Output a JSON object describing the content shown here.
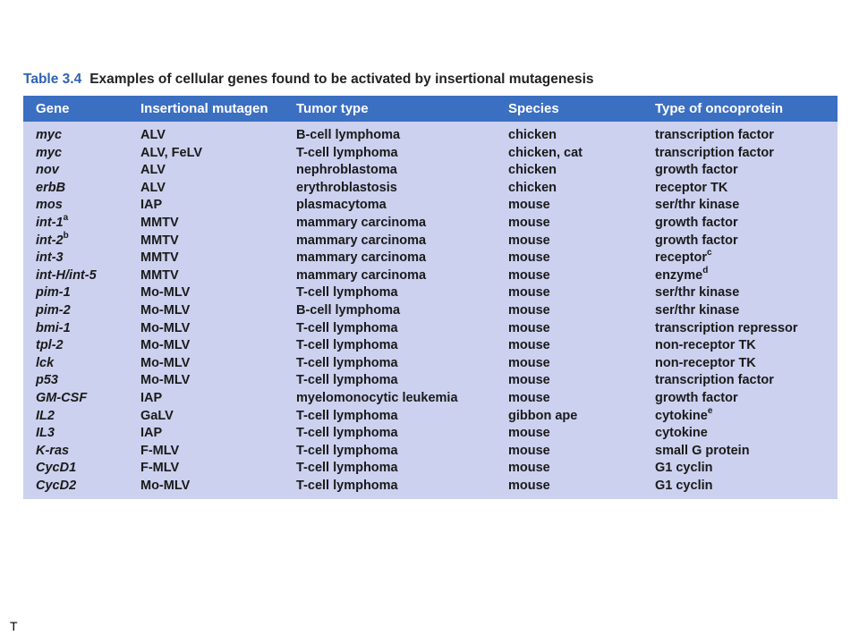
{
  "caption": {
    "label": "Table 3.4",
    "text": "Examples of cellular genes found to be activated by insertional mutagenesis"
  },
  "header": [
    "Gene",
    "Insertional mutagen",
    "Tumor type",
    "Species",
    "Type of oncoprotein"
  ],
  "rows": [
    {
      "gene": "myc",
      "gene_sup": "",
      "mutagen": "ALV",
      "tumor": "B-cell lymphoma",
      "species": "chicken",
      "onco": "transcription factor",
      "onco_sup": ""
    },
    {
      "gene": "myc",
      "gene_sup": "",
      "mutagen": "ALV, FeLV",
      "tumor": "T-cell lymphoma",
      "species": "chicken, cat",
      "onco": "transcription factor",
      "onco_sup": ""
    },
    {
      "gene": "nov",
      "gene_sup": "",
      "mutagen": "ALV",
      "tumor": "nephroblastoma",
      "species": "chicken",
      "onco": "growth factor",
      "onco_sup": ""
    },
    {
      "gene": "erbB",
      "gene_sup": "",
      "mutagen": "ALV",
      "tumor": "erythroblastosis",
      "species": "chicken",
      "onco": "receptor TK",
      "onco_sup": ""
    },
    {
      "gene": "mos",
      "gene_sup": "",
      "mutagen": "IAP",
      "tumor": "plasmacytoma",
      "species": "mouse",
      "onco": "ser/thr kinase",
      "onco_sup": ""
    },
    {
      "gene": "int-1",
      "gene_sup": "a",
      "mutagen": "MMTV",
      "tumor": "mammary carcinoma",
      "species": "mouse",
      "onco": "growth factor",
      "onco_sup": ""
    },
    {
      "gene": "int-2",
      "gene_sup": "b",
      "mutagen": "MMTV",
      "tumor": "mammary carcinoma",
      "species": "mouse",
      "onco": "growth factor",
      "onco_sup": ""
    },
    {
      "gene": "int-3",
      "gene_sup": "",
      "mutagen": "MMTV",
      "tumor": "mammary carcinoma",
      "species": "mouse",
      "onco": "receptor",
      "onco_sup": "c"
    },
    {
      "gene": "int-H/int-5",
      "gene_sup": "",
      "mutagen": "MMTV",
      "tumor": "mammary carcinoma",
      "species": "mouse",
      "onco": "enzyme",
      "onco_sup": "d"
    },
    {
      "gene": "pim-1",
      "gene_sup": "",
      "mutagen": "Mo-MLV",
      "tumor": "T-cell lymphoma",
      "species": "mouse",
      "onco": "ser/thr kinase",
      "onco_sup": ""
    },
    {
      "gene": "pim-2",
      "gene_sup": "",
      "mutagen": "Mo-MLV",
      "tumor": "B-cell lymphoma",
      "species": "mouse",
      "onco": "ser/thr kinase",
      "onco_sup": ""
    },
    {
      "gene": "bmi-1",
      "gene_sup": "",
      "mutagen": "Mo-MLV",
      "tumor": "T-cell lymphoma",
      "species": "mouse",
      "onco": "transcription repressor",
      "onco_sup": ""
    },
    {
      "gene": "tpl-2",
      "gene_sup": "",
      "mutagen": "Mo-MLV",
      "tumor": "T-cell lymphoma",
      "species": "mouse",
      "onco": "non-receptor TK",
      "onco_sup": ""
    },
    {
      "gene": "lck",
      "gene_sup": "",
      "mutagen": "Mo-MLV",
      "tumor": "T-cell lymphoma",
      "species": "mouse",
      "onco": "non-receptor TK",
      "onco_sup": ""
    },
    {
      "gene": "p53",
      "gene_sup": "",
      "mutagen": "Mo-MLV",
      "tumor": "T-cell lymphoma",
      "species": "mouse",
      "onco": "transcription factor",
      "onco_sup": ""
    },
    {
      "gene": "GM-CSF",
      "gene_sup": "",
      "mutagen": "IAP",
      "tumor": "myelomonocytic leukemia",
      "species": "mouse",
      "onco": "growth factor",
      "onco_sup": ""
    },
    {
      "gene": "IL2",
      "gene_sup": "",
      "mutagen": "GaLV",
      "tumor": "T-cell lymphoma",
      "species": "gibbon ape",
      "onco": "cytokine",
      "onco_sup": "e"
    },
    {
      "gene": "IL3",
      "gene_sup": "",
      "mutagen": "IAP",
      "tumor": "T-cell lymphoma",
      "species": "mouse",
      "onco": "cytokine",
      "onco_sup": ""
    },
    {
      "gene": "K-ras",
      "gene_sup": "",
      "mutagen": "F-MLV",
      "tumor": "T-cell lymphoma",
      "species": "mouse",
      "onco": "small G protein",
      "onco_sup": ""
    },
    {
      "gene": "CycD1",
      "gene_sup": "",
      "mutagen": "F-MLV",
      "tumor": "T-cell lymphoma",
      "species": "mouse",
      "onco": "G1 cyclin",
      "onco_sup": ""
    },
    {
      "gene": "CycD2",
      "gene_sup": "",
      "mutagen": "Mo-MLV",
      "tumor": "T-cell lymphoma",
      "species": "mouse",
      "onco": "G1 cyclin",
      "onco_sup": ""
    }
  ],
  "footer": {
    "mark": "T"
  },
  "colors": {
    "header_bg": "#3b6fc1",
    "table_bg": "#ccd1ef",
    "caption_label": "#2f62b3"
  }
}
